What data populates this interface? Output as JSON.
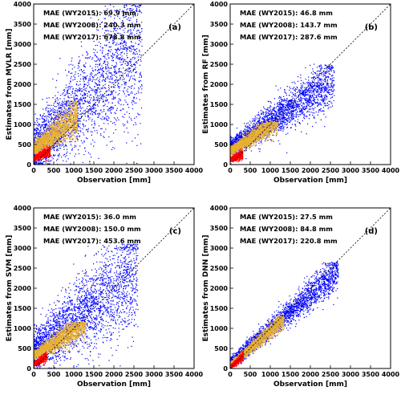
{
  "colors": {
    "wy2015": "#ff0000",
    "wy2008": "#0000ff",
    "wy2017": "#e8b030",
    "frame": "#000000",
    "one_to_one_line": "#000000"
  },
  "chart_data": [
    {
      "type": "scatter",
      "panel": "(a)",
      "xlabel": "Observation [mm]",
      "ylabel": "Estimates from MVLR [mm]",
      "xlim": [
        0,
        4000
      ],
      "ylim": [
        0,
        4000
      ],
      "xticks": [
        0,
        500,
        1000,
        1500,
        2000,
        2500,
        3000,
        3500,
        4000
      ],
      "yticks": [
        0,
        500,
        1000,
        1500,
        2000,
        2500,
        3000,
        3500,
        4000
      ],
      "grid": false,
      "one_to_one_line": true,
      "annotations": [
        "MAE (WY2015): 69.9 mm",
        "MAE (WY2008): 240.3 mm",
        "MAE (WY2017): 678.8 mm"
      ],
      "series": [
        {
          "color_key": "wy2008",
          "x_range": [
            0,
            2700
          ],
          "y_center": [
            400,
            0.95
          ],
          "spread": 700,
          "extent": [
            0,
            4000
          ]
        },
        {
          "color_key": "wy2017",
          "x_range": [
            0,
            1100
          ],
          "y_center": [
            380,
            0.75
          ],
          "spread": 180,
          "extent": [
            0,
            1600
          ]
        },
        {
          "color_key": "wy2015",
          "x_range": [
            0,
            420
          ],
          "y_center": [
            150,
            0.45
          ],
          "spread": 60,
          "extent": [
            0,
            500
          ]
        }
      ]
    },
    {
      "type": "scatter",
      "panel": "(b)",
      "xlabel": "Observation [mm]",
      "ylabel": "Estimates from RF [mm]",
      "xlim": [
        0,
        4000
      ],
      "ylim": [
        0,
        4000
      ],
      "xticks": [
        0,
        500,
        1000,
        1500,
        2000,
        2500,
        3000,
        3500,
        4000
      ],
      "yticks": [
        0,
        500,
        1000,
        1500,
        2000,
        2500,
        3000,
        3500,
        4000
      ],
      "grid": false,
      "one_to_one_line": true,
      "annotations": [
        "MAE (WY2015): 46.8 mm",
        "MAE (WY2008): 143.7 mm",
        "MAE (WY2017): 287.6 mm"
      ],
      "series": [
        {
          "color_key": "wy2008",
          "x_range": [
            0,
            2600
          ],
          "y_center": [
            420,
            0.65
          ],
          "spread": 250,
          "extent": [
            0,
            2500
          ]
        },
        {
          "color_key": "wy2017",
          "x_range": [
            0,
            1200
          ],
          "y_center": [
            330,
            0.62
          ],
          "spread": 110,
          "extent": [
            0,
            1050
          ]
        },
        {
          "color_key": "wy2015",
          "x_range": [
            0,
            320
          ],
          "y_center": [
            120,
            0.45
          ],
          "spread": 50,
          "extent": [
            0,
            400
          ]
        }
      ]
    },
    {
      "type": "scatter",
      "panel": "(c)",
      "xlabel": "Observation [mm]",
      "ylabel": "Estimates from SVM [mm]",
      "xlim": [
        0,
        4000
      ],
      "ylim": [
        0,
        4000
      ],
      "xticks": [
        0,
        500,
        1000,
        1500,
        2000,
        2500,
        3000,
        3500,
        4000
      ],
      "yticks": [
        0,
        500,
        1000,
        1500,
        2000,
        2500,
        3000,
        3500,
        4000
      ],
      "grid": false,
      "one_to_one_line": true,
      "annotations": [
        "MAE (WY2015): 36.0 mm",
        "MAE (WY2008): 150.0 mm",
        "MAE (WY2017): 453.6 mm"
      ],
      "series": [
        {
          "color_key": "wy2008",
          "x_range": [
            0,
            2600
          ],
          "y_center": [
            450,
            0.75
          ],
          "spread": 550,
          "extent": [
            0,
            3100
          ]
        },
        {
          "color_key": "wy2017",
          "x_range": [
            0,
            1300
          ],
          "y_center": [
            330,
            0.6
          ],
          "spread": 130,
          "extent": [
            0,
            1150
          ]
        },
        {
          "color_key": "wy2015",
          "x_range": [
            0,
            330
          ],
          "y_center": [
            100,
            0.6
          ],
          "spread": 50,
          "extent": [
            0,
            450
          ]
        }
      ]
    },
    {
      "type": "scatter",
      "panel": "(d)",
      "xlabel": "Observation [mm]",
      "ylabel": "Estimates from DNN [mm]",
      "xlim": [
        0,
        4000
      ],
      "ylim": [
        0,
        4000
      ],
      "xticks": [
        0,
        500,
        1000,
        1500,
        2000,
        2500,
        3000,
        3500,
        4000
      ],
      "yticks": [
        0,
        500,
        1000,
        1500,
        2000,
        2500,
        3000,
        3500,
        4000
      ],
      "grid": false,
      "one_to_one_line": true,
      "annotations": [
        "MAE (WY2015): 27.5 mm",
        "MAE (WY2008): 84.8 mm",
        "MAE (WY2017): 220.8 mm"
      ],
      "series": [
        {
          "color_key": "wy2008",
          "x_range": [
            0,
            2700
          ],
          "y_center": [
            130,
            0.85
          ],
          "spread": 170,
          "extent": [
            0,
            2650
          ]
        },
        {
          "color_key": "wy2017",
          "x_range": [
            0,
            1350
          ],
          "y_center": [
            80,
            0.85
          ],
          "spread": 80,
          "extent": [
            0,
            1300
          ]
        },
        {
          "color_key": "wy2015",
          "x_range": [
            0,
            330
          ],
          "y_center": [
            40,
            0.8
          ],
          "spread": 40,
          "extent": [
            0,
            450
          ]
        }
      ]
    }
  ]
}
